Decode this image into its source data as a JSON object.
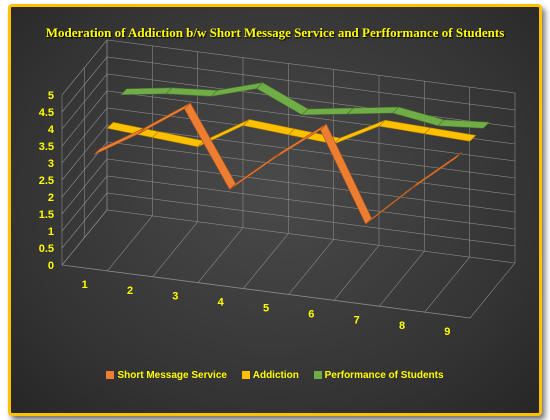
{
  "chart_data": {
    "type": "line",
    "title": "Moderation of Addiction b/w Short Message Service and Perfformance of Students",
    "categories": [
      "1",
      "2",
      "3",
      "4",
      "5",
      "6",
      "7",
      "8",
      "9"
    ],
    "ylim": [
      0,
      5
    ],
    "yticks": [
      "0",
      "0.5",
      "1",
      "1.5",
      "2",
      "2.5",
      "3",
      "3.5",
      "4",
      "4.5",
      "5"
    ],
    "grid": true,
    "legend_position": "bottom",
    "series": [
      {
        "name": "Short Message Service",
        "color": "#ed7d31",
        "values": [
          3.0,
          3.8,
          4.7,
          2.5,
          3.6,
          4.6,
          2.0,
          3.2,
          4.3
        ]
      },
      {
        "name": "Addiction",
        "color": "#ffc000",
        "values": [
          3.3,
          3.2,
          3.1,
          3.9,
          3.8,
          3.7,
          4.4,
          4.35,
          4.3
        ]
      },
      {
        "name": "Performance of Students",
        "color": "#70ad47",
        "values": [
          3.8,
          4.0,
          4.1,
          4.5,
          3.9,
          4.1,
          4.3,
          4.1,
          4.2
        ]
      }
    ]
  }
}
